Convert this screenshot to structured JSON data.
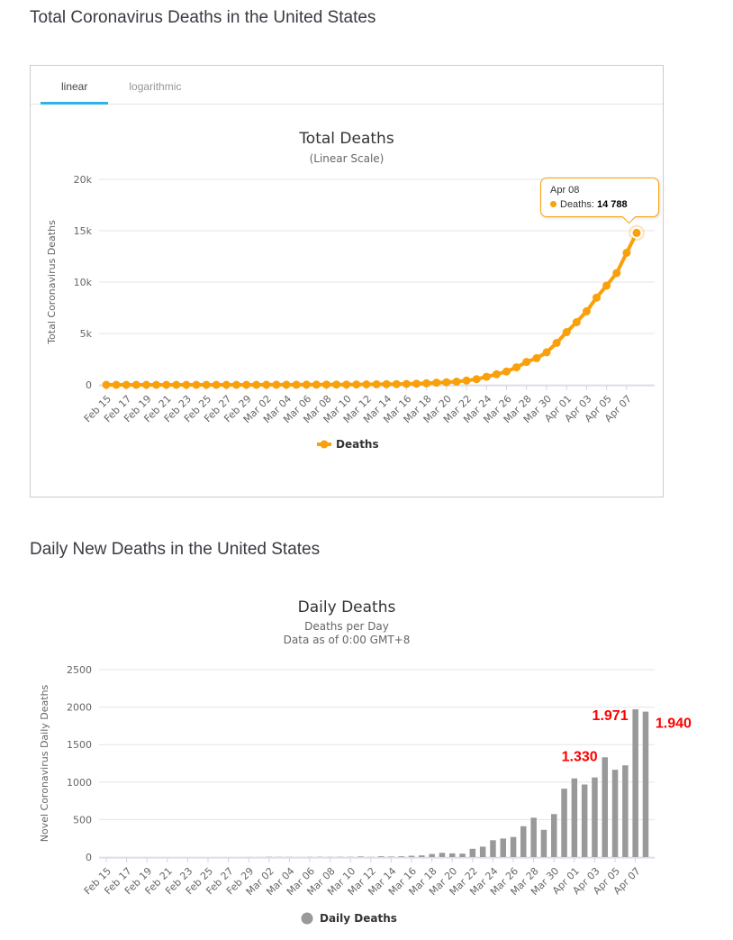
{
  "sections": [
    {
      "title": "Total Coronavirus Deaths in the United States"
    },
    {
      "title": "Daily New Deaths in the United States"
    }
  ],
  "tabs": [
    {
      "label": "linear",
      "active": true
    },
    {
      "label": "logarithmic",
      "active": false
    }
  ],
  "tooltip": {
    "date": "Apr 08",
    "label": "Deaths:",
    "value": "14 788"
  },
  "colors": {
    "series_orange": "#f9a00a",
    "bar_gray": "#999999",
    "annotation_red": "#ff0000",
    "tab_underline": "#2fb3e6",
    "gridline": "#e6e6e6",
    "axis_line": "#ccd6eb"
  },
  "chart_data": [
    {
      "type": "line",
      "title": "Total Deaths",
      "subtitle": "(Linear Scale)",
      "ylabel": "Total Coronavirus Deaths",
      "ylim": [
        0,
        20000
      ],
      "yticks": [
        0,
        5000,
        10000,
        15000,
        20000
      ],
      "ytick_labels": [
        "0",
        "5k",
        "10k",
        "15k",
        "20k"
      ],
      "x_label_interval": 2,
      "x": [
        "Feb 15",
        "Feb 16",
        "Feb 17",
        "Feb 18",
        "Feb 19",
        "Feb 20",
        "Feb 21",
        "Feb 22",
        "Feb 23",
        "Feb 24",
        "Feb 25",
        "Feb 26",
        "Feb 27",
        "Feb 28",
        "Feb 29",
        "Mar 01",
        "Mar 02",
        "Mar 03",
        "Mar 04",
        "Mar 05",
        "Mar 06",
        "Mar 07",
        "Mar 08",
        "Mar 09",
        "Mar 10",
        "Mar 11",
        "Mar 12",
        "Mar 13",
        "Mar 14",
        "Mar 15",
        "Mar 16",
        "Mar 17",
        "Mar 18",
        "Mar 19",
        "Mar 20",
        "Mar 21",
        "Mar 22",
        "Mar 23",
        "Mar 24",
        "Mar 25",
        "Mar 26",
        "Mar 27",
        "Mar 28",
        "Mar 29",
        "Mar 30",
        "Mar 31",
        "Apr 01",
        "Apr 02",
        "Apr 03",
        "Apr 04",
        "Apr 05",
        "Apr 06",
        "Apr 07",
        "Apr 08"
      ],
      "series": [
        {
          "name": "Deaths",
          "color": "#f9a00a",
          "values": [
            0,
            0,
            0,
            0,
            0,
            0,
            0,
            0,
            0,
            0,
            0,
            0,
            0,
            0,
            1,
            2,
            6,
            9,
            11,
            12,
            15,
            19,
            22,
            26,
            30,
            38,
            41,
            52,
            59,
            70,
            88,
            111,
            152,
            209,
            258,
            304,
            415,
            555,
            780,
            1027,
            1295,
            1706,
            2231,
            2594,
            3167,
            4079,
            5128,
            6096,
            7159,
            8489,
            9654,
            10877,
            12848,
            14788
          ]
        }
      ],
      "legend": "Deaths",
      "highlight_last": true,
      "tooltip": {
        "date": "Apr 08",
        "series": "Deaths",
        "value": "14 788"
      }
    },
    {
      "type": "bar",
      "title": "Daily Deaths",
      "subtitle_lines": [
        "Deaths per Day",
        "Data as of 0:00 GMT+8"
      ],
      "ylabel": "Novel Coronavirus Daily Deaths",
      "ylim": [
        0,
        2500
      ],
      "yticks": [
        0,
        500,
        1000,
        1500,
        2000,
        2500
      ],
      "ytick_labels": [
        "0",
        "500",
        "1000",
        "1500",
        "2000",
        "2500"
      ],
      "x_label_interval": 2,
      "x": [
        "Feb 15",
        "Feb 16",
        "Feb 17",
        "Feb 18",
        "Feb 19",
        "Feb 20",
        "Feb 21",
        "Feb 22",
        "Feb 23",
        "Feb 24",
        "Feb 25",
        "Feb 26",
        "Feb 27",
        "Feb 28",
        "Feb 29",
        "Mar 01",
        "Mar 02",
        "Mar 03",
        "Mar 04",
        "Mar 05",
        "Mar 06",
        "Mar 07",
        "Mar 08",
        "Mar 09",
        "Mar 10",
        "Mar 11",
        "Mar 12",
        "Mar 13",
        "Mar 14",
        "Mar 15",
        "Mar 16",
        "Mar 17",
        "Mar 18",
        "Mar 19",
        "Mar 20",
        "Mar 21",
        "Mar 22",
        "Mar 23",
        "Mar 24",
        "Mar 25",
        "Mar 26",
        "Mar 27",
        "Mar 28",
        "Mar 29",
        "Mar 30",
        "Mar 31",
        "Apr 01",
        "Apr 02",
        "Apr 03",
        "Apr 04",
        "Apr 05",
        "Apr 06",
        "Apr 07",
        "Apr 08"
      ],
      "series": [
        {
          "name": "Daily Deaths",
          "color": "#999999",
          "values": [
            0,
            0,
            0,
            0,
            0,
            0,
            0,
            0,
            0,
            0,
            0,
            0,
            0,
            0,
            1,
            1,
            4,
            3,
            2,
            1,
            3,
            4,
            3,
            4,
            4,
            8,
            3,
            11,
            7,
            11,
            18,
            23,
            41,
            57,
            49,
            46,
            111,
            140,
            225,
            247,
            268,
            411,
            525,
            363,
            573,
            912,
            1049,
            968,
            1063,
            1330,
            1165,
            1223,
            1971,
            1940
          ]
        }
      ],
      "legend": "Daily Deaths",
      "annotations": [
        {
          "index": 49,
          "text": "1.330",
          "side": "left",
          "dy": 4
        },
        {
          "index": 52,
          "text": "1.971",
          "side": "left",
          "dy": 12
        },
        {
          "index": 53,
          "text": "1.940",
          "side": "right",
          "dy": 18
        }
      ]
    }
  ]
}
